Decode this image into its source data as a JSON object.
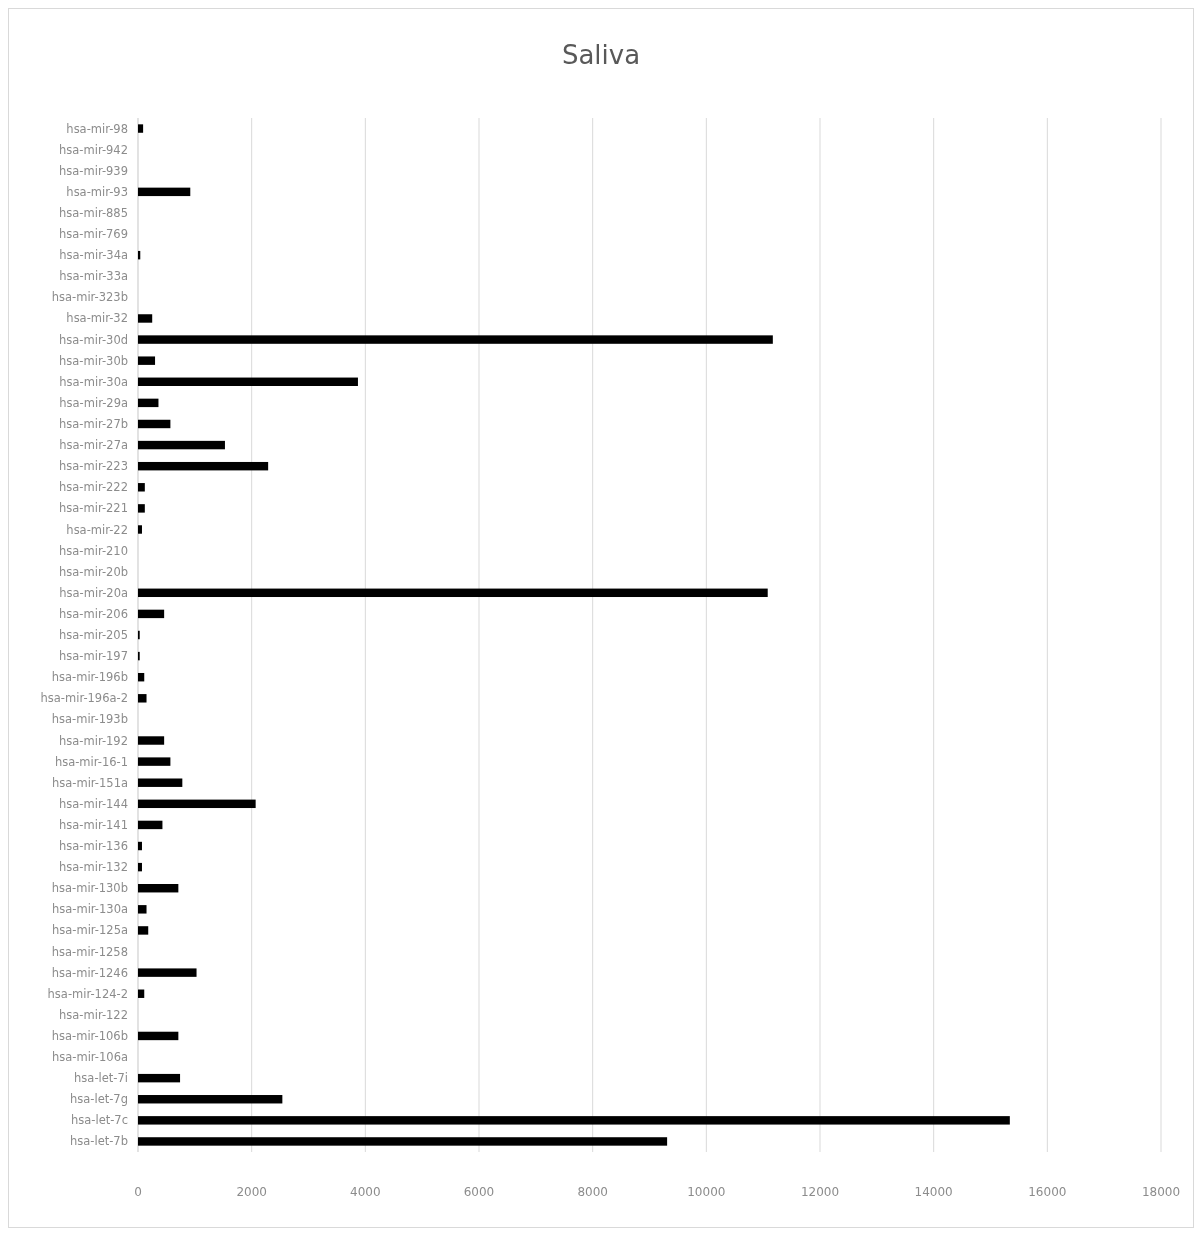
{
  "chart_data": {
    "type": "bar",
    "orientation": "horizontal",
    "title": "Saliva",
    "categories": [
      "hsa-mir-98",
      "hsa-mir-942",
      "hsa-mir-939",
      "hsa-mir-93",
      "hsa-mir-885",
      "hsa-mir-769",
      "hsa-mir-34a",
      "hsa-mir-33a",
      "hsa-mir-323b",
      "hsa-mir-32",
      "hsa-mir-30d",
      "hsa-mir-30b",
      "hsa-mir-30a",
      "hsa-mir-29a",
      "hsa-mir-27b",
      "hsa-mir-27a",
      "hsa-mir-223",
      "hsa-mir-222",
      "hsa-mir-221",
      "hsa-mir-22",
      "hsa-mir-210",
      "hsa-mir-20b",
      "hsa-mir-20a",
      "hsa-mir-206",
      "hsa-mir-205",
      "hsa-mir-197",
      "hsa-mir-196b",
      "hsa-mir-196a-2",
      "hsa-mir-193b",
      "hsa-mir-192",
      "hsa-mir-16-1",
      "hsa-mir-151a",
      "hsa-mir-144",
      "hsa-mir-141",
      "hsa-mir-136",
      "hsa-mir-132",
      "hsa-mir-130b",
      "hsa-mir-130a",
      "hsa-mir-125a",
      "hsa-mir-1258",
      "hsa-mir-1246",
      "hsa-mir-124-2",
      "hsa-mir-122",
      "hsa-mir-106b",
      "hsa-mir-106a",
      "hsa-let-7i",
      "hsa-let-7g",
      "hsa-let-7c",
      "hsa-let-7b"
    ],
    "values": [
      90,
      0,
      0,
      920,
      0,
      0,
      40,
      0,
      0,
      250,
      11170,
      300,
      3870,
      360,
      570,
      1530,
      2290,
      120,
      120,
      70,
      0,
      0,
      11080,
      460,
      30,
      30,
      110,
      150,
      0,
      460,
      570,
      780,
      2070,
      430,
      70,
      70,
      710,
      150,
      180,
      0,
      1030,
      110,
      0,
      710,
      0,
      740,
      2540,
      15340,
      9310
    ],
    "color": "#000000",
    "xlim": [
      0,
      18000
    ],
    "xticks": [
      0,
      2000,
      4000,
      6000,
      8000,
      10000,
      12000,
      14000,
      16000,
      18000
    ],
    "grid": "x"
  }
}
